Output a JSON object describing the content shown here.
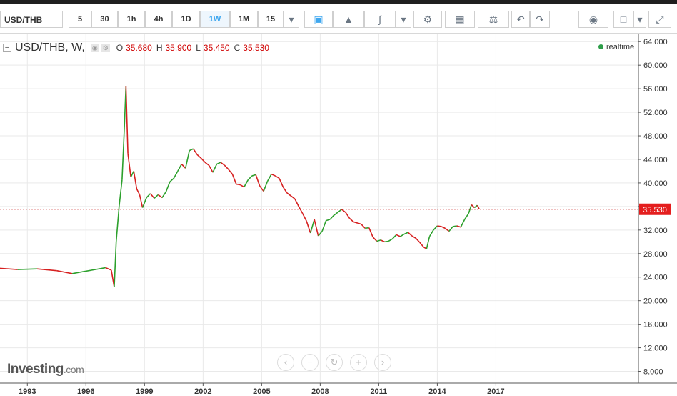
{
  "toolbar": {
    "symbol": "USD/THB",
    "intervals": [
      "5",
      "30",
      "1h",
      "4h",
      "1D",
      "1W",
      "1M",
      "15"
    ],
    "active_interval": "1W"
  },
  "legend": {
    "title": "USD/THB, W,",
    "o_label": "O",
    "o": "35.680",
    "h_label": "H",
    "h": "35.900",
    "l_label": "L",
    "l": "35.450",
    "c_label": "C",
    "c": "35.530"
  },
  "realtime": "realtime",
  "logo": {
    "main": "Investing",
    "suffix": ".com"
  },
  "colors": {
    "up": "#2ca02c",
    "down": "#d62020",
    "price_line": "#c00000",
    "price_tag": "#e41e1e"
  },
  "chart_data": {
    "type": "line",
    "title": "",
    "last_price": 35.53,
    "last_price_label": "35.530",
    "ylim": [
      6.0,
      65.0
    ],
    "y_ticks": [
      "64.000",
      "60.000",
      "56.000",
      "52.000",
      "48.000",
      "44.000",
      "40.000",
      "36.000",
      "32.000",
      "28.000",
      "24.000",
      "20.000",
      "16.000",
      "12.000",
      "8.000"
    ],
    "x_ticks": [
      "1993",
      "1996",
      "1999",
      "2002",
      "2005",
      "2008",
      "2011",
      "2014",
      "2017"
    ],
    "xlim": [
      1991.6,
      2024.3
    ],
    "series": [
      {
        "points": [
          [
            1991.6,
            25.5
          ],
          [
            1992.5,
            25.3
          ],
          [
            1993.5,
            25.4
          ],
          [
            1994.5,
            25.1
          ],
          [
            1995.3,
            24.6
          ],
          [
            1995.8,
            24.9
          ],
          [
            1996.5,
            25.3
          ],
          [
            1997.0,
            25.6
          ],
          [
            1997.3,
            25.2
          ],
          [
            1997.45,
            22.3
          ],
          [
            1997.55,
            30.0
          ],
          [
            1997.7,
            36.0
          ],
          [
            1997.85,
            40.5
          ],
          [
            1997.95,
            48.0
          ],
          [
            1998.05,
            56.5
          ],
          [
            1998.15,
            45.0
          ],
          [
            1998.3,
            41.0
          ],
          [
            1998.45,
            42.0
          ],
          [
            1998.6,
            39.0
          ],
          [
            1998.75,
            38.0
          ],
          [
            1998.9,
            35.8
          ],
          [
            1999.1,
            37.5
          ],
          [
            1999.3,
            38.2
          ],
          [
            1999.5,
            37.4
          ],
          [
            1999.7,
            38.0
          ],
          [
            1999.9,
            37.5
          ],
          [
            2000.1,
            38.5
          ],
          [
            2000.3,
            40.2
          ],
          [
            2000.5,
            40.8
          ],
          [
            2000.7,
            42.0
          ],
          [
            2000.9,
            43.2
          ],
          [
            2001.1,
            42.5
          ],
          [
            2001.3,
            45.5
          ],
          [
            2001.5,
            45.8
          ],
          [
            2001.7,
            44.8
          ],
          [
            2001.9,
            44.2
          ],
          [
            2002.1,
            43.5
          ],
          [
            2002.3,
            43.0
          ],
          [
            2002.5,
            41.8
          ],
          [
            2002.7,
            43.2
          ],
          [
            2002.9,
            43.5
          ],
          [
            2003.1,
            43.0
          ],
          [
            2003.3,
            42.3
          ],
          [
            2003.5,
            41.5
          ],
          [
            2003.7,
            39.8
          ],
          [
            2003.9,
            39.7
          ],
          [
            2004.1,
            39.3
          ],
          [
            2004.3,
            40.5
          ],
          [
            2004.5,
            41.2
          ],
          [
            2004.7,
            41.4
          ],
          [
            2004.9,
            39.5
          ],
          [
            2005.1,
            38.6
          ],
          [
            2005.3,
            40.3
          ],
          [
            2005.5,
            41.5
          ],
          [
            2005.7,
            41.2
          ],
          [
            2005.9,
            40.8
          ],
          [
            2006.1,
            39.3
          ],
          [
            2006.3,
            38.3
          ],
          [
            2006.5,
            37.8
          ],
          [
            2006.7,
            37.3
          ],
          [
            2006.9,
            36.0
          ],
          [
            2007.1,
            34.8
          ],
          [
            2007.3,
            33.5
          ],
          [
            2007.5,
            31.5
          ],
          [
            2007.7,
            33.8
          ],
          [
            2007.9,
            31.0
          ],
          [
            2008.1,
            31.8
          ],
          [
            2008.3,
            33.6
          ],
          [
            2008.5,
            33.8
          ],
          [
            2008.7,
            34.5
          ],
          [
            2008.9,
            35.0
          ],
          [
            2009.1,
            35.5
          ],
          [
            2009.3,
            35.0
          ],
          [
            2009.5,
            34.0
          ],
          [
            2009.7,
            33.4
          ],
          [
            2009.9,
            33.2
          ],
          [
            2010.1,
            33.0
          ],
          [
            2010.3,
            32.3
          ],
          [
            2010.5,
            32.4
          ],
          [
            2010.7,
            30.8
          ],
          [
            2010.9,
            30.1
          ],
          [
            2011.1,
            30.3
          ],
          [
            2011.3,
            30.0
          ],
          [
            2011.5,
            30.1
          ],
          [
            2011.7,
            30.5
          ],
          [
            2011.9,
            31.2
          ],
          [
            2012.1,
            30.9
          ],
          [
            2012.3,
            31.3
          ],
          [
            2012.5,
            31.6
          ],
          [
            2012.7,
            31.0
          ],
          [
            2012.9,
            30.6
          ],
          [
            2013.1,
            29.9
          ],
          [
            2013.3,
            29.1
          ],
          [
            2013.45,
            28.8
          ],
          [
            2013.6,
            30.9
          ],
          [
            2013.8,
            32.0
          ],
          [
            2014.0,
            32.7
          ],
          [
            2014.2,
            32.6
          ],
          [
            2014.4,
            32.3
          ],
          [
            2014.6,
            31.8
          ],
          [
            2014.8,
            32.6
          ],
          [
            2015.0,
            32.7
          ],
          [
            2015.2,
            32.5
          ],
          [
            2015.4,
            33.8
          ],
          [
            2015.6,
            34.8
          ],
          [
            2015.75,
            36.3
          ],
          [
            2015.9,
            35.8
          ],
          [
            2016.05,
            36.2
          ],
          [
            2016.15,
            35.53
          ]
        ]
      }
    ]
  }
}
